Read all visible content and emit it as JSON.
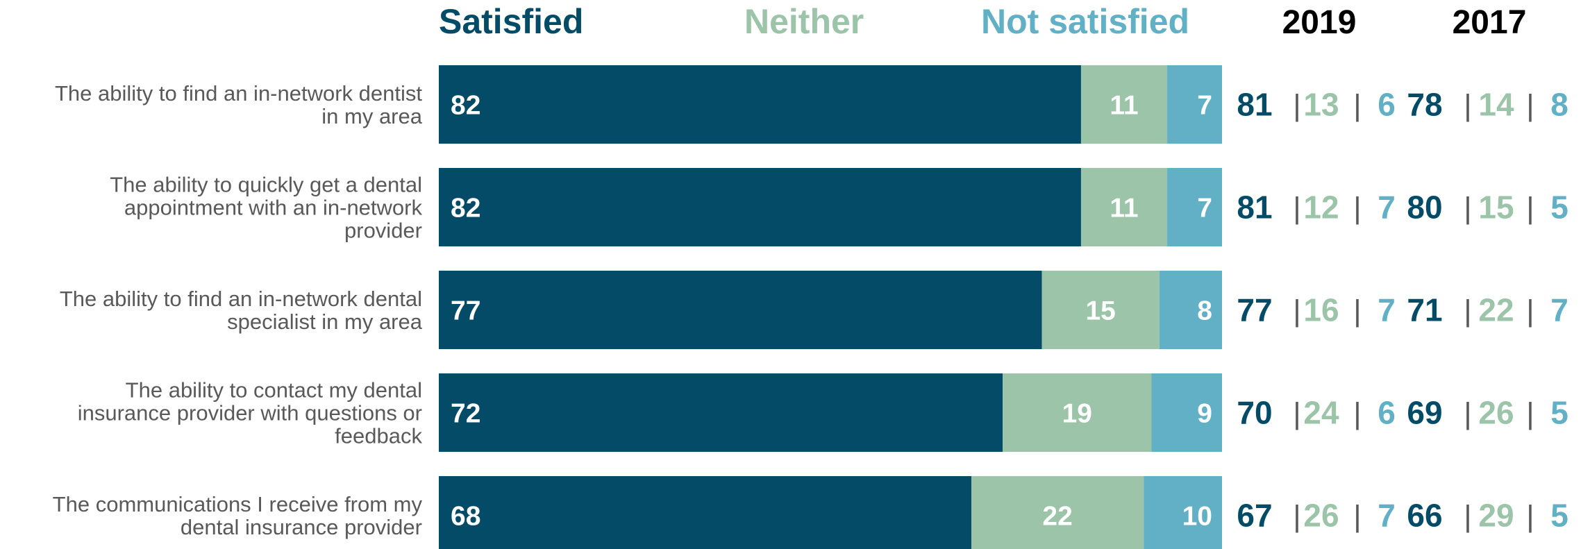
{
  "colors": {
    "satisfied": "#034B66",
    "neither": "#9BC4A8",
    "not_satisfied": "#62B0C5",
    "year_header": "#000000",
    "label": "#595959",
    "separator": "#595959",
    "bar_text": "#ffffff"
  },
  "chart_data": {
    "type": "bar",
    "orientation": "horizontal",
    "stacked": true,
    "xlim": [
      0,
      100
    ],
    "legend_position": "top",
    "categories": [
      "The ability to find an in-network dentist in my area",
      "The ability to quickly get a dental appointment with an in-network provider",
      "The ability to find an in-network dental specialist in my area",
      "The ability to contact my dental insurance provider with questions or feedback",
      "The communications I receive from my dental insurance provider"
    ],
    "category_lines": [
      [
        "The ability to find an in-network dentist",
        "in my area"
      ],
      [
        "The ability to quickly get a dental",
        "appointment with an in-network",
        "provider"
      ],
      [
        "The ability to find an in-network dental",
        "specialist in my area"
      ],
      [
        "The ability to contact my dental",
        "insurance provider with questions or",
        "feedback"
      ],
      [
        "The communications I receive from my",
        "dental insurance provider"
      ]
    ],
    "series": [
      {
        "name": "Satisfied",
        "color_key": "satisfied",
        "values": [
          82,
          82,
          77,
          72,
          68
        ]
      },
      {
        "name": "Neither",
        "color_key": "neither",
        "values": [
          11,
          11,
          15,
          19,
          22
        ]
      },
      {
        "name": "Not satisfied",
        "color_key": "not_satisfied",
        "values": [
          7,
          7,
          8,
          9,
          10
        ]
      }
    ],
    "comparison_columns": [
      {
        "year": "2019",
        "values": [
          [
            81,
            13,
            6
          ],
          [
            81,
            12,
            7
          ],
          [
            77,
            16,
            7
          ],
          [
            70,
            24,
            6
          ],
          [
            67,
            26,
            7
          ]
        ]
      },
      {
        "year": "2017",
        "values": [
          [
            78,
            14,
            8
          ],
          [
            80,
            15,
            5
          ],
          [
            71,
            22,
            7
          ],
          [
            69,
            26,
            5
          ],
          [
            66,
            29,
            5
          ]
        ]
      }
    ],
    "separator": "|"
  }
}
